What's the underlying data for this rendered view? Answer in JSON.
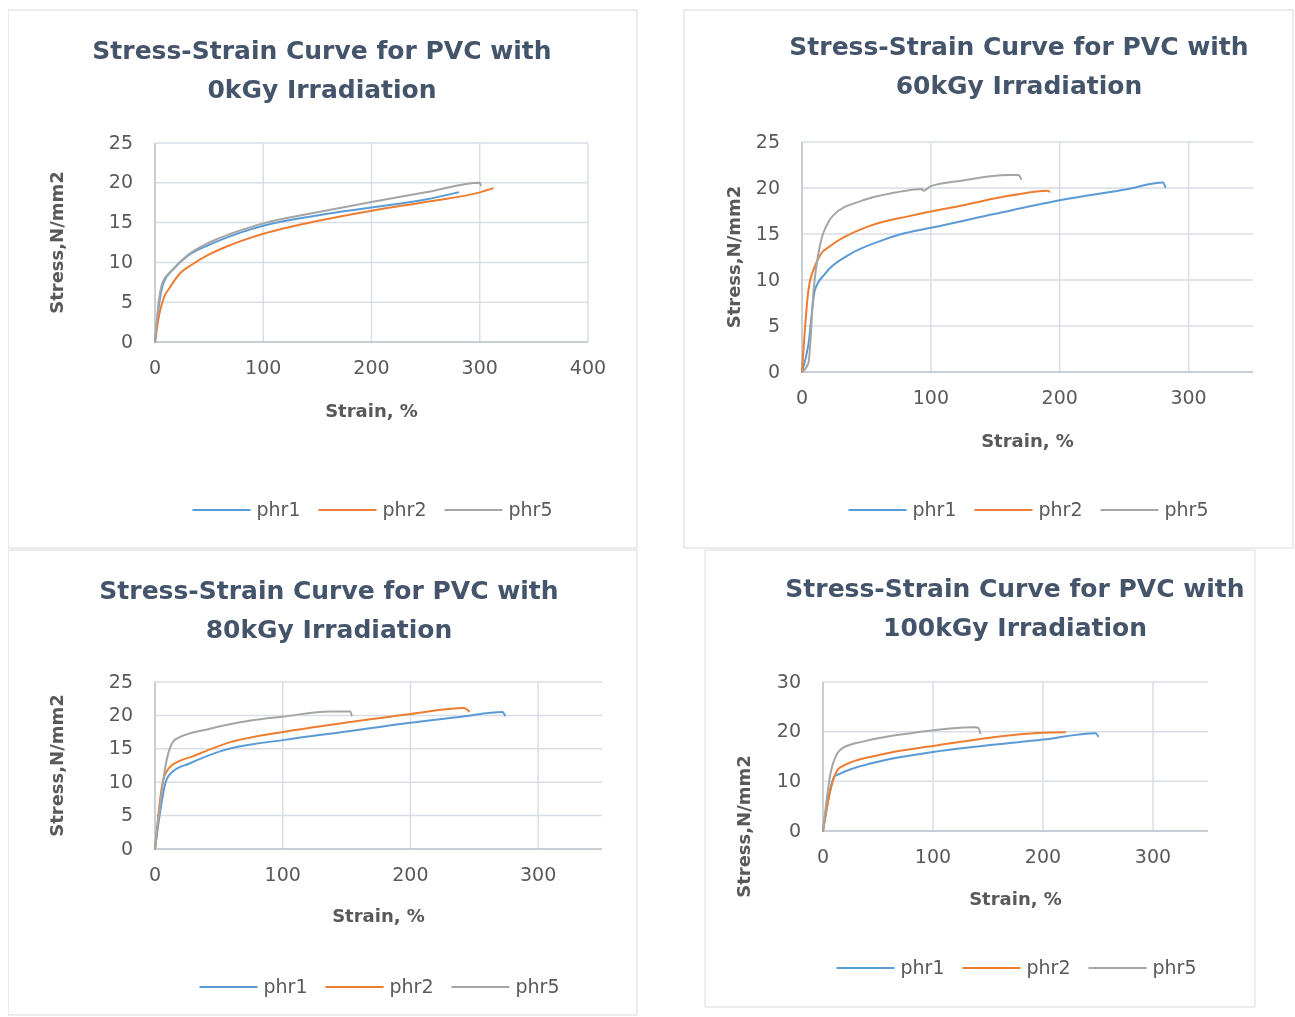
{
  "chart_data": [
    {
      "type": "line",
      "title": "Stress-Strain Curve for PVC with 0kGy Irradiation",
      "xlabel": "Strain, %",
      "ylabel": "Stress,N/mm2",
      "xlim": [
        0,
        400
      ],
      "xticks": [
        0,
        100,
        200,
        300,
        400
      ],
      "ylim": [
        0,
        25
      ],
      "yticks": [
        0,
        5,
        10,
        15,
        20,
        25
      ],
      "grid": true,
      "legend": "bottom",
      "series": [
        {
          "name": "phr1",
          "color": "#5b9bd5",
          "x": [
            0,
            3,
            8,
            18,
            30,
            50,
            70,
            100,
            150,
            200,
            250,
            280
          ],
          "values": [
            0,
            4,
            7.5,
            9.3,
            10.8,
            12.2,
            13.3,
            14.6,
            15.9,
            16.9,
            17.9,
            18.8
          ]
        },
        {
          "name": "phr2",
          "color": "#ed7d31",
          "x": [
            0,
            4,
            8,
            14,
            23,
            35,
            50,
            70,
            100,
            150,
            200,
            250,
            300,
            312
          ],
          "values": [
            0,
            3.5,
            5.5,
            6.9,
            8.6,
            9.8,
            11,
            12.2,
            13.6,
            15.2,
            16.5,
            17.6,
            18.8,
            19.3
          ]
        },
        {
          "name": "phr5",
          "color": "#a5a5a5",
          "x": [
            0,
            3,
            7,
            15,
            30,
            50,
            70,
            100,
            150,
            200,
            250,
            300,
            301
          ],
          "values": [
            0,
            4.5,
            7.5,
            8.9,
            10.9,
            12.5,
            13.6,
            14.9,
            16.3,
            17.6,
            18.8,
            20,
            19.7
          ]
        }
      ]
    },
    {
      "type": "line",
      "title": "Stress-Strain Curve for PVC with 60kGy Irradiation",
      "xlabel": "Strain, %",
      "ylabel": "Stress,N/mm2",
      "xlim": [
        0,
        350
      ],
      "xticks": [
        0,
        100,
        200,
        300
      ],
      "ylim": [
        0,
        25
      ],
      "yticks": [
        0,
        5,
        10,
        15,
        20,
        25
      ],
      "grid": true,
      "legend": "bottom",
      "series": [
        {
          "name": "phr1",
          "color": "#5b9bd5",
          "x": [
            0,
            5,
            10,
            18,
            36,
            60,
            80,
            101,
            150,
            201,
            253,
            280,
            282
          ],
          "values": [
            0,
            3,
            8.9,
            10.7,
            12.7,
            14.2,
            15.1,
            15.7,
            17.2,
            18.7,
            19.9,
            20.6,
            20.1
          ]
        },
        {
          "name": "phr2",
          "color": "#ed7d31",
          "x": [
            0,
            5,
            10,
            14,
            23,
            51,
            85,
            124,
            163,
            191,
            192
          ],
          "values": [
            0,
            8.9,
            11.5,
            12.7,
            13.8,
            15.8,
            17,
            18.1,
            19.2,
            19.7,
            19.6
          ]
        },
        {
          "name": "phr5",
          "color": "#a5a5a5",
          "x": [
            0,
            5,
            9,
            15,
            19,
            24,
            46,
            72,
            93,
            94,
            100,
            124,
            160,
            168,
            170
          ],
          "values": [
            0,
            1,
            8.9,
            14.4,
            15.9,
            17,
            18.6,
            19.5,
            19.9,
            19.7,
            20.2,
            20.8,
            21.4,
            21.4,
            21
          ]
        }
      ]
    },
    {
      "type": "line",
      "title": "Stress-Strain Curve for PVC with 80kGy Irradiation",
      "xlabel": "Strain, %",
      "ylabel": "Stress,N/mm2",
      "xlim": [
        0,
        350
      ],
      "xticks": [
        0,
        100,
        200,
        300
      ],
      "ylim": [
        0,
        25
      ],
      "yticks": [
        0,
        5,
        10,
        15,
        20,
        25
      ],
      "grid": true,
      "legend": "bottom",
      "series": [
        {
          "name": "phr1",
          "color": "#5b9bd5",
          "x": [
            0,
            9,
            14,
            27,
            54,
            100,
            150,
            200,
            240,
            272,
            274
          ],
          "values": [
            0,
            10.4,
            11.6,
            12.8,
            14.8,
            16.3,
            17.6,
            18.9,
            19.8,
            20.5,
            20
          ]
        },
        {
          "name": "phr2",
          "color": "#ed7d31",
          "x": [
            0,
            6.5,
            13,
            30,
            59,
            100,
            153,
            200,
            242,
            246
          ],
          "values": [
            0,
            10.4,
            12.5,
            13.9,
            16,
            17.5,
            19,
            20.2,
            21.1,
            20.6
          ]
        },
        {
          "name": "phr5",
          "color": "#a5a5a5",
          "x": [
            0,
            9,
            16,
            43,
            74,
            100,
            137,
            153,
            154
          ],
          "values": [
            0,
            13.2,
            16.4,
            18,
            19.2,
            19.8,
            20.6,
            20.6,
            20
          ]
        }
      ]
    },
    {
      "type": "line",
      "title": "Stress-Strain Curve for PVC with 100kGy Irradiation",
      "xlabel": "Strain, %",
      "ylabel": "Stress,N/mm2",
      "xlim": [
        0,
        350
      ],
      "xticks": [
        0,
        100,
        200,
        300
      ],
      "ylim": [
        0,
        30
      ],
      "yticks": [
        0,
        10,
        20,
        30
      ],
      "grid": true,
      "legend": "bottom",
      "series": [
        {
          "name": "phr1",
          "color": "#5b9bd5",
          "x": [
            0,
            10.6,
            14,
            53,
            100,
            200,
            248,
            250
          ],
          "values": [
            0,
            11,
            11.4,
            14.1,
            15.9,
            18.4,
            19.7,
            19.1
          ]
        },
        {
          "name": "phr2",
          "color": "#ed7d31",
          "x": [
            0,
            7.6,
            15,
            53,
            100,
            200,
            220
          ],
          "values": [
            0,
            9,
            12.7,
            15.4,
            17.1,
            19.8,
            19.9
          ]
        },
        {
          "name": "phr5",
          "color": "#a5a5a5",
          "x": [
            0,
            7.6,
            17,
            38,
            83,
            138,
            141,
            143
          ],
          "values": [
            0,
            12.4,
            16.6,
            18.1,
            19.8,
            20.9,
            20.8,
            19.7
          ]
        }
      ]
    }
  ]
}
